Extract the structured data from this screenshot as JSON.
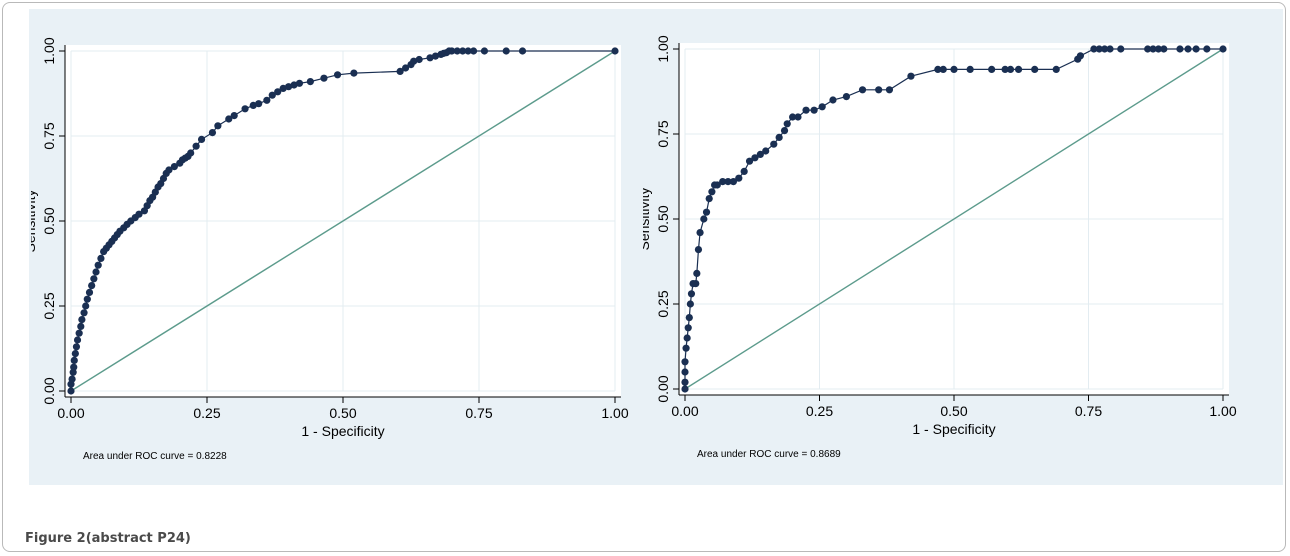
{
  "figure": {
    "caption": "Figure 2(abstract P24)"
  },
  "colors": {
    "background": "#e9f1f6",
    "plot_bg": "#ffffff",
    "curve": "#1a2f52",
    "diagonal": "#5c9b8c",
    "grid": "#e3ecf1",
    "text": "#000000"
  },
  "chart_data": [
    {
      "type": "line",
      "xlabel": "1 - Specificity",
      "ylabel": "Sensitivity",
      "xlim": [
        0,
        1
      ],
      "ylim": [
        0,
        1
      ],
      "xticks": [
        "0.00",
        "0.25",
        "0.50",
        "0.75",
        "1.00"
      ],
      "yticks": [
        "0.00",
        "0.25",
        "0.50",
        "0.75",
        "1.00"
      ],
      "grid": true,
      "annotation": "Area under ROC curve = 0.8228",
      "reference_line": [
        [
          0,
          0
        ],
        [
          1,
          1
        ]
      ],
      "series": [
        {
          "markers": true,
          "x": [
            0.0,
            0.0,
            0.002,
            0.004,
            0.005,
            0.006,
            0.008,
            0.01,
            0.012,
            0.015,
            0.018,
            0.02,
            0.024,
            0.027,
            0.03,
            0.034,
            0.038,
            0.042,
            0.046,
            0.05,
            0.055,
            0.06,
            0.065,
            0.07,
            0.075,
            0.08,
            0.085,
            0.09,
            0.097,
            0.103,
            0.11,
            0.118,
            0.125,
            0.135,
            0.14,
            0.145,
            0.15,
            0.155,
            0.16,
            0.165,
            0.17,
            0.175,
            0.18,
            0.19,
            0.2,
            0.205,
            0.21,
            0.215,
            0.22,
            0.23,
            0.24,
            0.26,
            0.27,
            0.29,
            0.3,
            0.32,
            0.335,
            0.345,
            0.36,
            0.37,
            0.38,
            0.39,
            0.4,
            0.41,
            0.42,
            0.44,
            0.465,
            0.49,
            0.52,
            0.605,
            0.615,
            0.625,
            0.63,
            0.64,
            0.66,
            0.67,
            0.68,
            0.685,
            0.69,
            0.695,
            0.7,
            0.71,
            0.72,
            0.73,
            0.74,
            0.76,
            0.8,
            0.83,
            1.0
          ],
          "y": [
            0.0,
            0.02,
            0.035,
            0.055,
            0.07,
            0.09,
            0.11,
            0.13,
            0.15,
            0.17,
            0.19,
            0.21,
            0.23,
            0.25,
            0.27,
            0.29,
            0.31,
            0.33,
            0.35,
            0.37,
            0.39,
            0.41,
            0.42,
            0.43,
            0.44,
            0.45,
            0.46,
            0.47,
            0.48,
            0.49,
            0.5,
            0.51,
            0.52,
            0.53,
            0.545,
            0.56,
            0.57,
            0.585,
            0.6,
            0.61,
            0.625,
            0.64,
            0.65,
            0.66,
            0.67,
            0.68,
            0.685,
            0.69,
            0.7,
            0.72,
            0.74,
            0.76,
            0.78,
            0.8,
            0.81,
            0.83,
            0.84,
            0.845,
            0.855,
            0.87,
            0.88,
            0.89,
            0.895,
            0.9,
            0.905,
            0.91,
            0.92,
            0.93,
            0.935,
            0.94,
            0.95,
            0.96,
            0.97,
            0.975,
            0.98,
            0.985,
            0.99,
            0.993,
            0.995,
            1.0,
            1.0,
            1.0,
            1.0,
            1.0,
            1.0,
            1.0,
            1.0,
            1.0,
            1.0
          ]
        }
      ]
    },
    {
      "type": "line",
      "xlabel": "1 - Specificity",
      "ylabel": "Sensitivity",
      "xlim": [
        0,
        1
      ],
      "ylim": [
        0,
        1
      ],
      "xticks": [
        "0.00",
        "0.25",
        "0.50",
        "0.75",
        "1.00"
      ],
      "yticks": [
        "0.00",
        "0.25",
        "0.50",
        "0.75",
        "1.00"
      ],
      "grid": true,
      "annotation": "Area under ROC curve = 0.8689",
      "reference_line": [
        [
          0,
          0
        ],
        [
          1,
          1
        ]
      ],
      "series": [
        {
          "markers": true,
          "x": [
            0.0,
            0.0,
            0.0,
            0.0,
            0.002,
            0.004,
            0.006,
            0.008,
            0.01,
            0.012,
            0.015,
            0.02,
            0.022,
            0.025,
            0.028,
            0.035,
            0.04,
            0.045,
            0.05,
            0.055,
            0.06,
            0.07,
            0.08,
            0.09,
            0.1,
            0.11,
            0.12,
            0.13,
            0.14,
            0.15,
            0.165,
            0.175,
            0.185,
            0.19,
            0.2,
            0.21,
            0.225,
            0.24,
            0.255,
            0.275,
            0.3,
            0.33,
            0.36,
            0.38,
            0.42,
            0.47,
            0.48,
            0.5,
            0.53,
            0.57,
            0.595,
            0.605,
            0.62,
            0.65,
            0.69,
            0.73,
            0.735,
            0.76,
            0.77,
            0.78,
            0.79,
            0.81,
            0.86,
            0.87,
            0.88,
            0.89,
            0.92,
            0.935,
            0.95,
            0.97,
            1.0
          ],
          "y": [
            0.0,
            0.02,
            0.05,
            0.08,
            0.12,
            0.15,
            0.18,
            0.21,
            0.25,
            0.28,
            0.31,
            0.31,
            0.34,
            0.41,
            0.46,
            0.5,
            0.52,
            0.56,
            0.58,
            0.6,
            0.6,
            0.61,
            0.61,
            0.61,
            0.62,
            0.64,
            0.67,
            0.68,
            0.69,
            0.7,
            0.72,
            0.74,
            0.76,
            0.78,
            0.8,
            0.8,
            0.82,
            0.82,
            0.83,
            0.85,
            0.86,
            0.88,
            0.88,
            0.88,
            0.92,
            0.94,
            0.94,
            0.94,
            0.94,
            0.94,
            0.94,
            0.94,
            0.94,
            0.94,
            0.94,
            0.97,
            0.98,
            1.0,
            1.0,
            1.0,
            1.0,
            1.0,
            1.0,
            1.0,
            1.0,
            1.0,
            1.0,
            1.0,
            1.0,
            1.0,
            1.0
          ]
        }
      ]
    }
  ]
}
